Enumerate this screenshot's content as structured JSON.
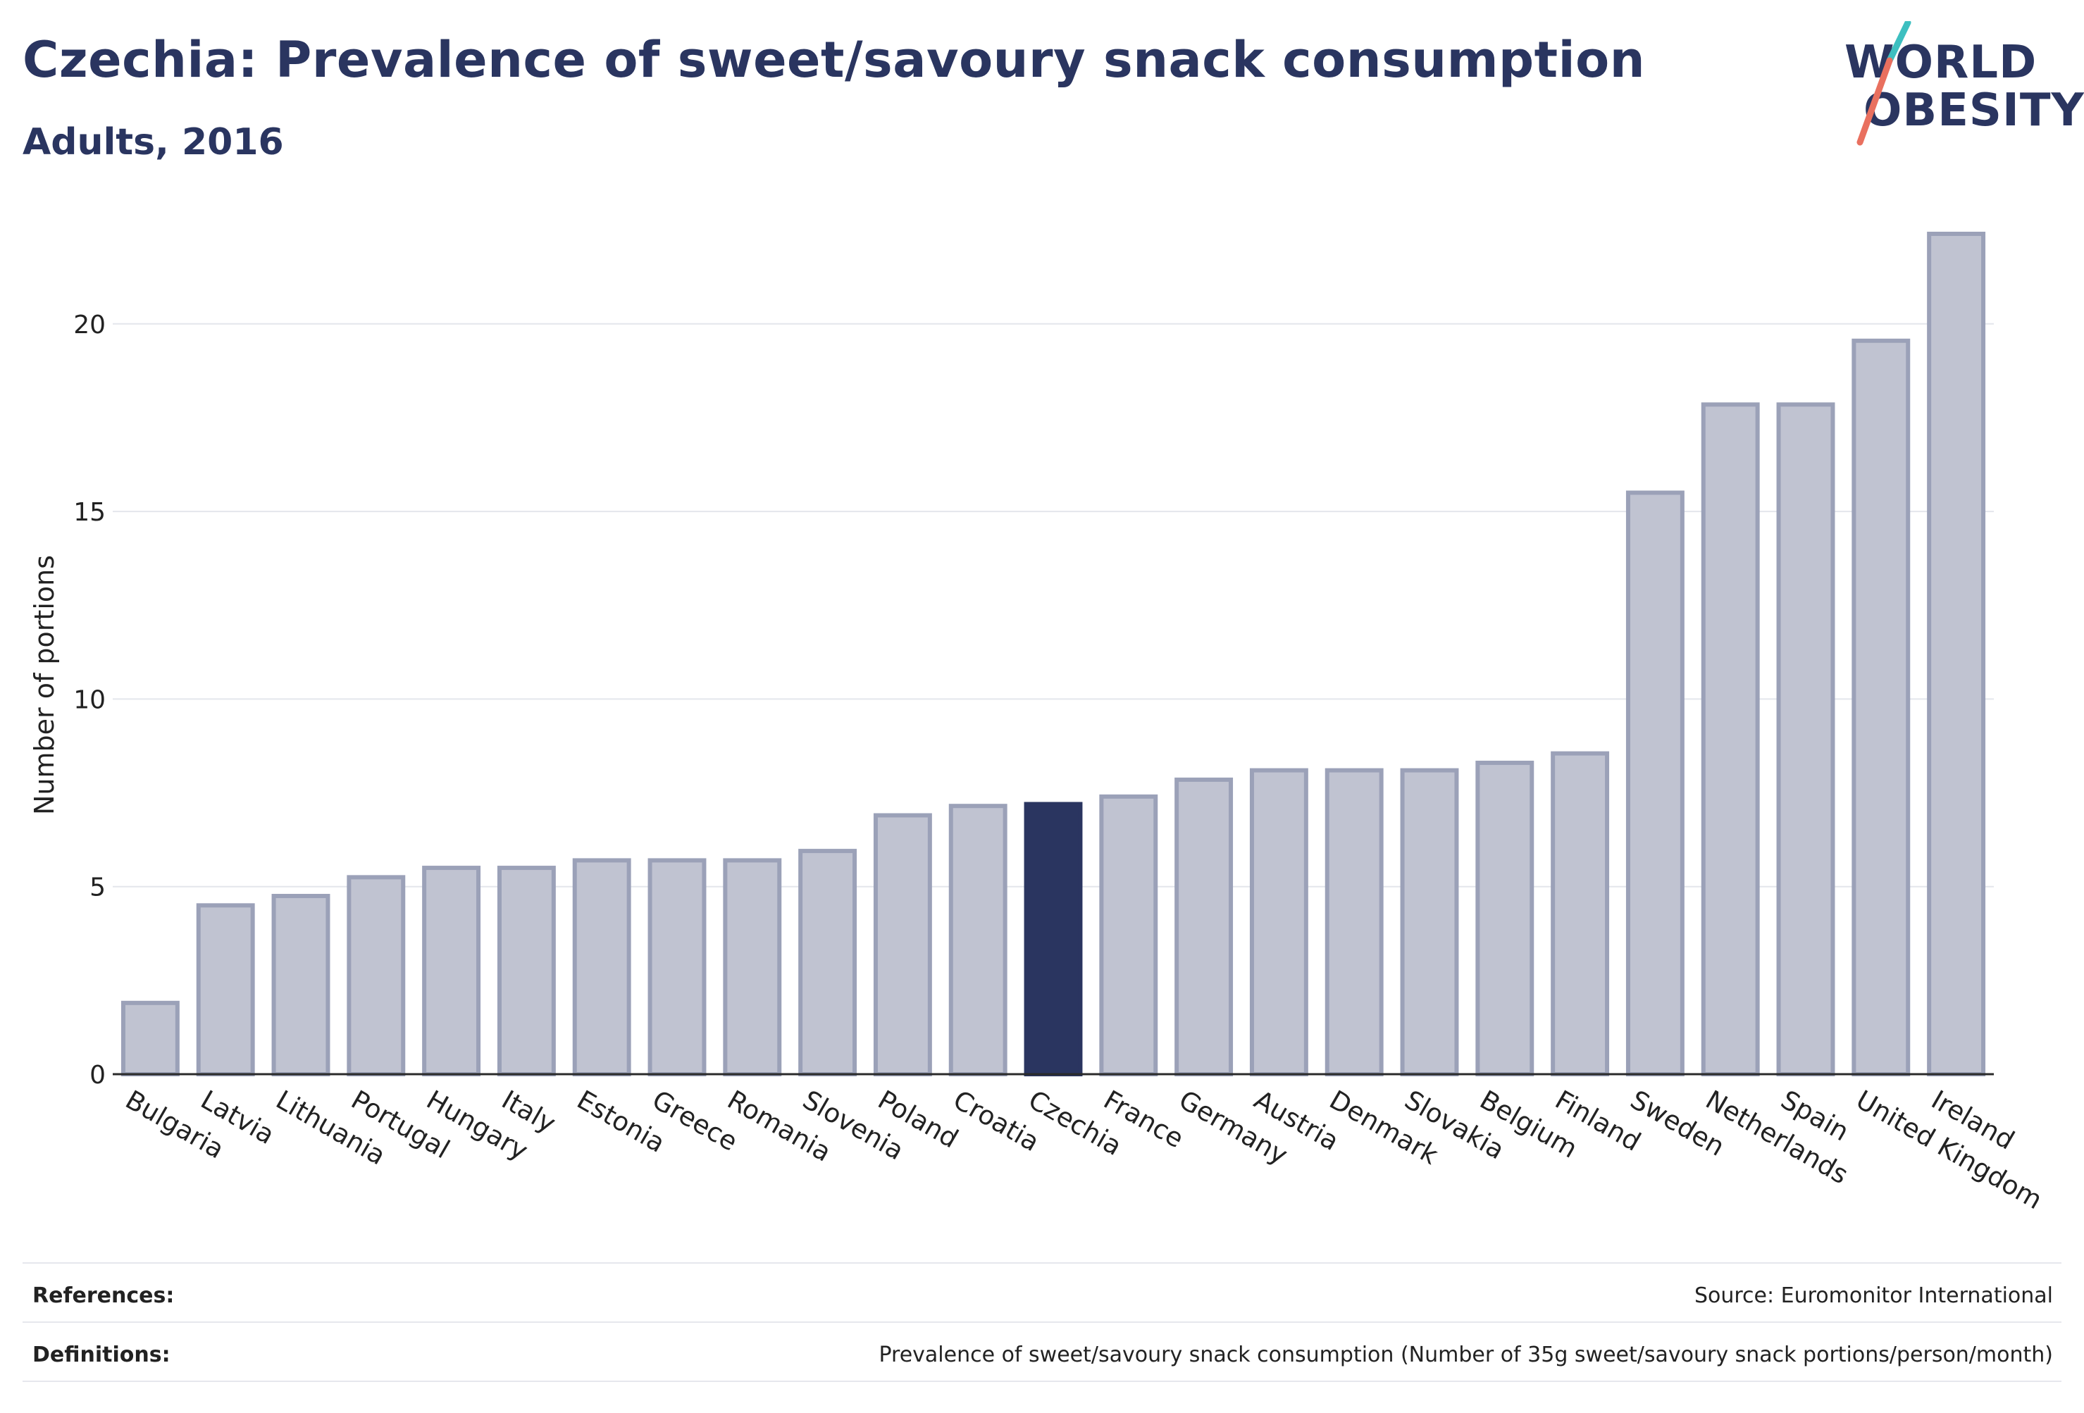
{
  "title": "Czechia: Prevalence of sweet/savoury snack consumption",
  "subtitle": "Adults, 2016",
  "logo": {
    "line1": "WORLD",
    "line2": "OBESITY",
    "icon": "slash-stripe-icon"
  },
  "colors": {
    "highlight": "#2a3560",
    "bar_fill": "#c0c3d1",
    "bar_stroke": "#9ba1b8",
    "grid": "#e4e6ec",
    "text": "#2a3560",
    "logo_teal": "#3dbfc0",
    "logo_coral": "#e9705f"
  },
  "chart_data": {
    "type": "bar",
    "categories": [
      "Bulgaria",
      "Latvia",
      "Lithuania",
      "Portugal",
      "Hungary",
      "Italy",
      "Estonia",
      "Greece",
      "Romania",
      "Slovenia",
      "Poland",
      "Croatia",
      "Czechia",
      "France",
      "Germany",
      "Austria",
      "Denmark",
      "Slovakia",
      "Belgium",
      "Finland",
      "Sweden",
      "Netherlands",
      "Spain",
      "United Kingdom",
      "Ireland"
    ],
    "values": [
      1.9,
      4.5,
      4.75,
      5.25,
      5.5,
      5.5,
      5.7,
      5.7,
      5.7,
      5.95,
      6.9,
      7.15,
      7.2,
      7.4,
      7.85,
      8.1,
      8.1,
      8.1,
      8.3,
      8.55,
      15.5,
      17.85,
      17.85,
      19.55,
      22.4
    ],
    "highlight": "Czechia",
    "xlabel": "",
    "ylabel": "Number of portions",
    "ylim": [
      0,
      23
    ],
    "yticks": [
      0,
      5,
      10,
      15,
      20
    ],
    "grid": true
  },
  "footer": {
    "references_label": "References:",
    "references_value": "Source: Euromonitor International",
    "definitions_label": "Definitions:",
    "definitions_value": "Prevalence of sweet/savoury snack consumption (Number of 35g sweet/savoury snack portions/person/month)"
  }
}
